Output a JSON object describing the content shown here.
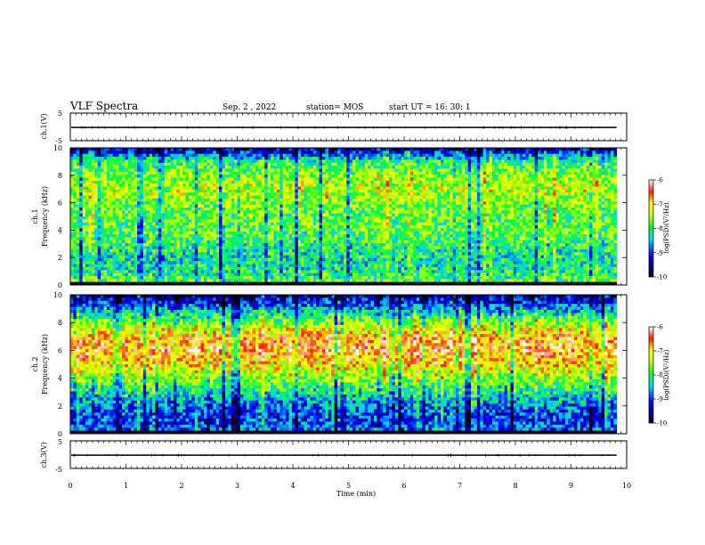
{
  "header": {
    "title": "VLF Spectra",
    "date": "Sep. 2 , 2022",
    "station": "station= MOS",
    "start": "start UT = 16: 30: 1"
  },
  "chart_data": [
    {
      "type": "line",
      "panel": "ch1_waveform",
      "ylabel": "ch.1(V)",
      "ylim": [
        -5,
        5
      ],
      "yticks": [
        "5",
        "-5"
      ],
      "xlim": [
        0,
        10
      ],
      "baseline_value": -0.2
    },
    {
      "type": "heatmap",
      "panel": "ch1_spectrogram",
      "ylabel": "ch.1\nFrequency (kHz)",
      "ylabel_line1": "ch.1",
      "ylabel_line2": "Frequency (kHz)",
      "ylim": [
        0,
        10
      ],
      "yticks": [
        "0",
        "2",
        "4",
        "6",
        "8",
        "10"
      ],
      "xlim": [
        0,
        10
      ],
      "colorbar": {
        "min": -10,
        "max": -6,
        "ticks": [
          "-6",
          "-7",
          "-8",
          "-9",
          "-10"
        ],
        "label": "log(PSD)(V²/Hz)"
      },
      "intensity_profile_by_freq_khz": [
        [
          0.3,
          0.55
        ],
        [
          1,
          0.45
        ],
        [
          2,
          0.45
        ],
        [
          3,
          0.5
        ],
        [
          4,
          0.55
        ],
        [
          5,
          0.55
        ],
        [
          6,
          0.6
        ],
        [
          7,
          0.65
        ],
        [
          8,
          0.6
        ],
        [
          9,
          0.5
        ],
        [
          9.5,
          0.3
        ],
        [
          10,
          0.1
        ]
      ]
    },
    {
      "type": "heatmap",
      "panel": "ch2_spectrogram",
      "ylabel": "ch.2\nFrequency (kHz)",
      "ylabel_line1": "ch.2",
      "ylabel_line2": "Frequency (kHz)",
      "ylim": [
        0,
        10
      ],
      "yticks": [
        "0",
        "2",
        "4",
        "6",
        "8",
        "10"
      ],
      "xlim": [
        0,
        10
      ],
      "colorbar": {
        "min": -10,
        "max": -6,
        "ticks": [
          "-6",
          "-7",
          "-8",
          "-9",
          "-10"
        ],
        "label": "log(PSD)(V²/Hz)"
      },
      "intensity_profile_by_freq_khz": [
        [
          0.3,
          0.3
        ],
        [
          1,
          0.25
        ],
        [
          2,
          0.3
        ],
        [
          3,
          0.45
        ],
        [
          4,
          0.6
        ],
        [
          5,
          0.75
        ],
        [
          6,
          0.85
        ],
        [
          7,
          0.8
        ],
        [
          8,
          0.6
        ],
        [
          9,
          0.35
        ],
        [
          9.5,
          0.2
        ],
        [
          10,
          0.1
        ]
      ]
    },
    {
      "type": "line",
      "panel": "ch3_waveform",
      "ylabel": "ch.3(V)",
      "ylim": [
        -5,
        5
      ],
      "yticks": [
        "5",
        "-5"
      ],
      "xlim": [
        0,
        10
      ],
      "baseline_value": -0.2
    }
  ],
  "xaxis": {
    "label": "Time (min)",
    "ticks": [
      "0",
      "1",
      "2",
      "3",
      "4",
      "5",
      "6",
      "7",
      "8",
      "9",
      "10"
    ]
  }
}
